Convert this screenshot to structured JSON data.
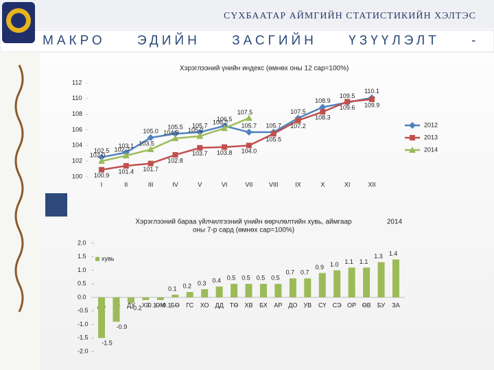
{
  "header": {
    "org": "СҮХБААТАР АЙМГИЙН СТАТИСТИКИЙН ХЭЛТЭС",
    "title": "МАКРО ЭДИЙН ЗАСГИЙН ҮЗҮҮЛЭЛТ -"
  },
  "chart_data": [
    {
      "type": "line",
      "title": "Хэрэглээний үнийн индекс (өмнөх оны 12 сар=100%)",
      "categories": [
        "I",
        "II",
        "III",
        "IV",
        "V",
        "VI",
        "VII",
        "VIII",
        "IX",
        "X",
        "XI",
        "XII"
      ],
      "ylim": [
        100,
        112
      ],
      "yticks": [
        100,
        102,
        104,
        106,
        108,
        110,
        112
      ],
      "legend": "right",
      "series": [
        {
          "name": "2012",
          "color": "#4f81bd",
          "marker": "diamond",
          "values": [
            102.5,
            103.1,
            105.0,
            105.5,
            105.7,
            106.5,
            105.7,
            105.7,
            107.5,
            108.9,
            109.5,
            110.1
          ],
          "value_labels": [
            "102.5",
            "103.1",
            "105.0",
            "105.5",
            "105.7",
            "106.5",
            "105.7",
            "105.7",
            "107.5",
            "108.9",
            "109.5",
            "110.1"
          ]
        },
        {
          "name": "2013",
          "color": "#c0504d",
          "marker": "square",
          "values": [
            100.9,
            101.4,
            101.7,
            102.8,
            103.7,
            103.8,
            104.0,
            105.5,
            107.2,
            108.3,
            109.6,
            109.9
          ],
          "value_labels": [
            "100.9",
            "101.4",
            "101.7",
            "102.8",
            "103.7",
            "103.8",
            "104.0",
            "105.5",
            "107.2",
            "108.3",
            "109.6",
            "109.9"
          ]
        },
        {
          "name": "2014",
          "color": "#9bbb59",
          "marker": "triangle",
          "values": [
            102.0,
            102.7,
            103.5,
            104.9,
            105.2,
            106.2,
            107.5,
            null,
            null,
            null,
            null,
            null
          ],
          "value_labels": [
            "102.0",
            "102.7",
            "103.5",
            "104.9",
            "105.2",
            "106.2",
            "107.5",
            null,
            null,
            null,
            null,
            null
          ]
        }
      ]
    },
    {
      "type": "bar",
      "title": [
        "Хэрэглээний бараа үйлчилгээний үнийн өөрчлөлтийн хувь, аймгаар",
        "оны 7-р сард (өмнөх сар=100%)"
      ],
      "subtitle": "2014",
      "categories": [
        "ДА",
        "ГО",
        "ДУ",
        "ХЗ",
        "ӨМ",
        "БӨ",
        "ГС",
        "ХО",
        "ДД",
        "ТӨ",
        "ХВ",
        "БХ",
        "АР",
        "ДО",
        "УВ",
        "СҮ",
        "СЭ",
        "ОР",
        "ӨВ",
        "БУ",
        "ЗА"
      ],
      "ylim": [
        -2,
        2
      ],
      "yticks": [
        {
          "value": -2,
          "label": "-2.0"
        },
        -1.5,
        {
          "value": -1,
          "label": "-1.0"
        },
        -0.5,
        {
          "value": 0,
          "label": "0.0"
        },
        0.5,
        {
          "value": 1,
          "label": "1.0"
        },
        1.5,
        {
          "value": 2,
          "label": "2.0"
        }
      ],
      "legend": "top-left",
      "series": [
        {
          "name": "хувь",
          "color": "#9bbb59",
          "values": [
            -1.5,
            -0.9,
            -0.2,
            -0.1,
            -0.1,
            0.1,
            0.2,
            0.3,
            0.4,
            0.5,
            0.5,
            0.5,
            0.5,
            0.7,
            0.7,
            0.9,
            1.0,
            1.1,
            1.1,
            1.3,
            1.4
          ],
          "value_labels": [
            "-1.5",
            "-0.9",
            "-0.2",
            "-0.1",
            "-0.1",
            "0.1",
            "0.2",
            "0.3",
            "0.4",
            "0.5",
            "0.5",
            "0.5",
            "0.5",
            "0.7",
            "0.7",
            "0.9",
            "1.0",
            "1.1",
            "1.1",
            "1.3",
            "1.4"
          ]
        }
      ]
    }
  ]
}
